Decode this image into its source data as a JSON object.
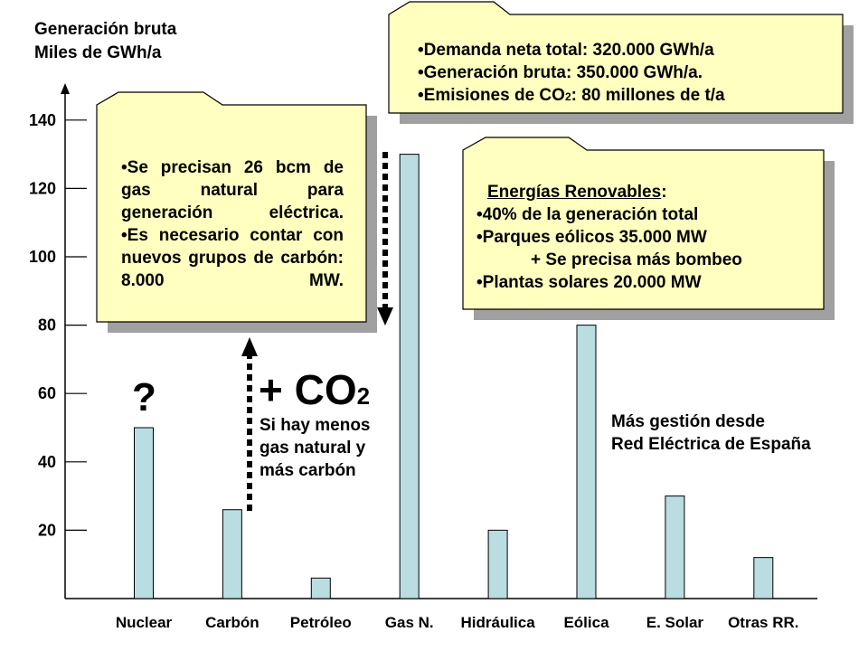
{
  "y_axis_title": [
    "Generación bruta",
    "Miles de GWh/a"
  ],
  "colors": {
    "bar": "#b9dde0",
    "note": "#ffffc0",
    "note_shadow": "#a0a0a0",
    "stroke": "#000000"
  },
  "chart_data": {
    "type": "bar",
    "categories": [
      "Nuclear",
      "Carbón",
      "Petróleo",
      "Gas N.",
      "Hidráulica",
      "Eólica",
      "E. Solar",
      "Otras RR."
    ],
    "values": [
      50,
      26,
      6,
      130,
      20,
      80,
      30,
      12
    ],
    "ylabel": "Generación bruta Miles de GWh/a",
    "yticks": [
      20,
      40,
      60,
      80,
      100,
      120,
      140
    ],
    "ylim": [
      0,
      150
    ],
    "grid": false,
    "legend": "none"
  },
  "notes": {
    "top_right": {
      "lines": [
        "Demanda neta total: 320.000 GWh/a",
        "Generación bruta: 350.000 GWh/a."
      ],
      "emissions": {
        "before": "Emisiones de CO",
        "sub": "2",
        "after": ": 80 millones de t/a"
      }
    },
    "left": {
      "items": [
        "Se precisan 26 bcm de gas natural para generación eléctrica.",
        "Es necesario contar con nuevos grupos de carbón: 8.000 MW."
      ]
    },
    "right": {
      "heading": "Energías Renovables",
      "heading_suffix": ":",
      "items": [
        "40% de la generación total",
        "Parques eólicos 35.000 MW",
        "Plantas solares 20.000 MW"
      ],
      "extra": "+ Se precisa más bombeo"
    }
  },
  "annotations": {
    "question": "?",
    "co2": {
      "plus": "+ CO",
      "sub": "2",
      "lines": [
        "Si hay menos",
        "gas natural y",
        "más carbón"
      ]
    },
    "ree": [
      "Más gestión desde",
      "Red Eléctrica de España"
    ]
  }
}
